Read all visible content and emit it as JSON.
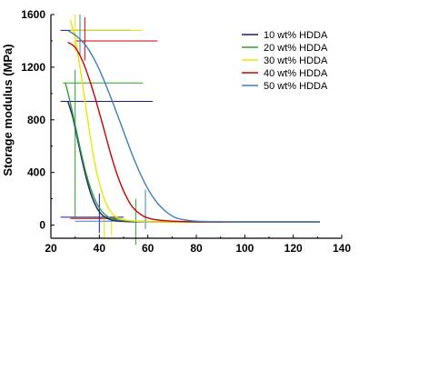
{
  "chart_data": {
    "type": "line",
    "title": "",
    "xlabel": "",
    "ylabel": "Storage modulus (MPa)",
    "xlim": [
      20,
      140
    ],
    "ylim": [
      -100,
      1600
    ],
    "x_ticks": [
      20,
      40,
      60,
      80,
      100,
      120,
      140
    ],
    "y_ticks": [
      0,
      400,
      800,
      1200,
      1600
    ],
    "grid": false,
    "legend_position": "top-right",
    "colors": {
      "10 wt% HDDA": "#1a1a8c",
      "20 wt% HDDA": "#2ca02c",
      "30 wt% HDDA": "#e8e800",
      "40 wt% HDDA": "#cc0000",
      "50 wt% HDDA": "#3a7fc2"
    },
    "series": [
      {
        "name": "10 wt% HDDA",
        "x": [
          27,
          29,
          31,
          33,
          35,
          37,
          39,
          41,
          44,
          48,
          55,
          70,
          100,
          131
        ],
        "y": [
          940,
          820,
          650,
          480,
          330,
          210,
          130,
          80,
          45,
          30,
          25,
          24,
          24,
          24
        ]
      },
      {
        "name": "20 wt% HDDA",
        "x": [
          26,
          28,
          30,
          32,
          34,
          36,
          38,
          40,
          43,
          47,
          55,
          70,
          100,
          131
        ],
        "y": [
          1080,
          930,
          760,
          590,
          430,
          300,
          200,
          130,
          70,
          40,
          28,
          24,
          24,
          24
        ]
      },
      {
        "name": "30 wt% HDDA",
        "x": [
          28,
          30,
          32,
          34,
          36,
          38,
          40,
          42,
          44,
          47,
          52,
          60,
          75,
          100,
          131
        ],
        "y": [
          1560,
          1420,
          1200,
          950,
          700,
          480,
          320,
          200,
          120,
          60,
          35,
          26,
          24,
          24,
          24
        ]
      },
      {
        "name": "40 wt% HDDA",
        "x": [
          27,
          30,
          33,
          36,
          39,
          42,
          45,
          48,
          51,
          54,
          58,
          62,
          70,
          85,
          100,
          131
        ],
        "y": [
          1390,
          1350,
          1250,
          1100,
          920,
          720,
          520,
          350,
          220,
          130,
          70,
          45,
          30,
          24,
          24,
          24
        ]
      },
      {
        "name": "50 wt% HDDA",
        "x": [
          27,
          31,
          35,
          39,
          43,
          47,
          51,
          55,
          59,
          63,
          67,
          71,
          75,
          80,
          90,
          100,
          131
        ],
        "y": [
          1480,
          1430,
          1350,
          1220,
          1050,
          860,
          660,
          470,
          310,
          190,
          110,
          60,
          40,
          30,
          25,
          24,
          24
        ]
      }
    ],
    "annotation_lines": [
      {
        "series": "10 wt% HDDA",
        "orientation": "h",
        "y": 1480,
        "x": [
          24,
          53
        ]
      },
      {
        "series": "10 wt% HDDA",
        "orientation": "h",
        "y": 940,
        "x": [
          24,
          62
        ]
      },
      {
        "series": "10 wt% HDDA",
        "orientation": "h",
        "y": 60,
        "x": [
          24,
          50
        ]
      },
      {
        "series": "10 wt% HDDA",
        "orientation": "v",
        "x": 40,
        "y": [
          -60,
          240
        ]
      },
      {
        "series": "20 wt% HDDA",
        "orientation": "h",
        "y": 1080,
        "x": [
          25,
          58
        ]
      },
      {
        "series": "20 wt% HDDA",
        "orientation": "v",
        "x": 30,
        "y": [
          60,
          1180
        ]
      },
      {
        "series": "20 wt% HDDA",
        "orientation": "v",
        "x": 55,
        "y": [
          -150,
          200
        ]
      },
      {
        "series": "30 wt% HDDA",
        "orientation": "h",
        "y": 1480,
        "x": [
          28,
          58
        ]
      },
      {
        "series": "30 wt% HDDA",
        "orientation": "v",
        "x": 30,
        "y": [
          1320,
          1600
        ]
      },
      {
        "series": "30 wt% HDDA",
        "orientation": "v",
        "x": 42,
        "y": [
          -100,
          60
        ]
      },
      {
        "series": "30 wt% HDDA",
        "orientation": "v",
        "x": 45,
        "y": [
          -80,
          40
        ]
      },
      {
        "series": "40 wt% HDDA",
        "orientation": "h",
        "y": 1400,
        "x": [
          30,
          64
        ]
      },
      {
        "series": "40 wt% HDDA",
        "orientation": "v",
        "x": 34,
        "y": [
          1250,
          1580
        ]
      },
      {
        "series": "40 wt% HDDA",
        "orientation": "h",
        "y": 50,
        "x": [
          28,
          48
        ]
      },
      {
        "series": "50 wt% HDDA",
        "orientation": "v",
        "x": 32,
        "y": [
          1280,
          1600
        ]
      },
      {
        "series": "50 wt% HDDA",
        "orientation": "v",
        "x": 59,
        "y": [
          -30,
          270
        ]
      },
      {
        "series": "50 wt% HDDA",
        "orientation": "h",
        "y": 30,
        "x": [
          30,
          60
        ]
      }
    ]
  }
}
